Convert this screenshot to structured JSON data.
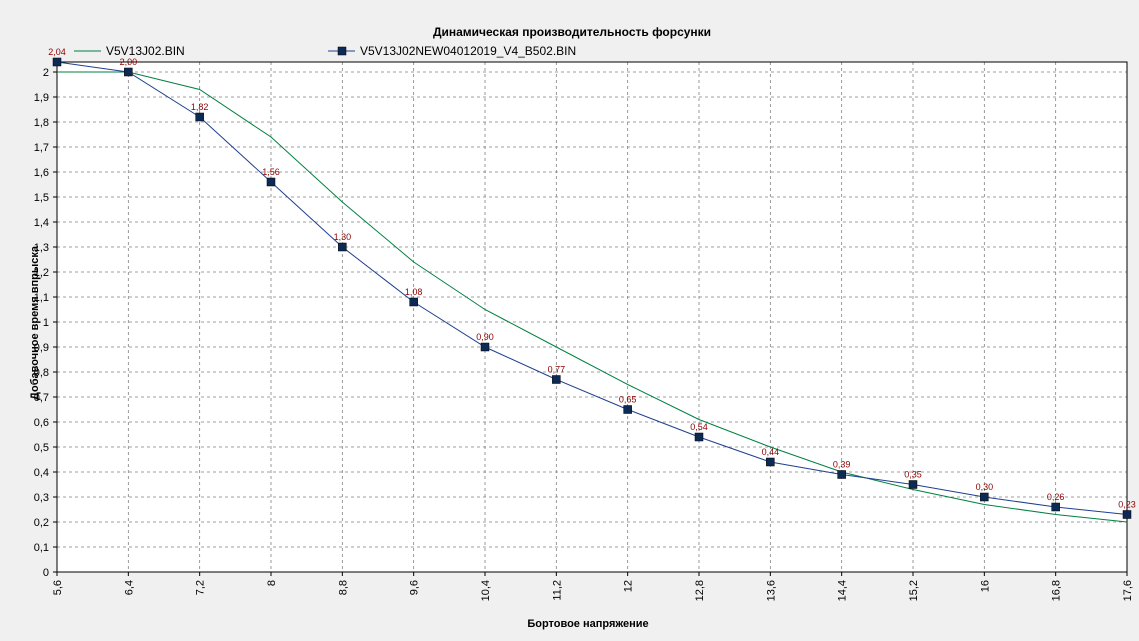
{
  "chart_data": {
    "type": "line",
    "title": "Динамическая производительность форсунки",
    "xlabel": "Бортовое напряжение",
    "ylabel": "Добавочное время впрыска",
    "x": [
      5.6,
      6.4,
      7.2,
      8.0,
      8.8,
      9.6,
      10.4,
      11.2,
      12.0,
      12.8,
      13.6,
      14.4,
      15.2,
      16.0,
      16.8,
      17.6
    ],
    "x_tick_labels": [
      "5,6",
      "6,4",
      "7,2",
      "8",
      "8,8",
      "9,6",
      "10,4",
      "11,2",
      "12",
      "12,8",
      "13,6",
      "14,4",
      "15,2",
      "16",
      "16,8",
      "17,6"
    ],
    "y_tick_labels": [
      "0",
      "0,1",
      "0,2",
      "0,3",
      "0,4",
      "0,5",
      "0,6",
      "0,7",
      "0,8",
      "0,9",
      "1",
      "1,1",
      "1,2",
      "1,3",
      "1,4",
      "1,5",
      "1,6",
      "1,7",
      "1,8",
      "1,9",
      "2"
    ],
    "xlim": [
      5.6,
      17.6
    ],
    "ylim": [
      0,
      2.04
    ],
    "grid": true,
    "legend_position": "top",
    "series": [
      {
        "name": "V5V13J02.BIN",
        "color": "#008040",
        "marker": "none",
        "values": [
          2.0,
          2.0,
          1.93,
          1.74,
          1.48,
          1.24,
          1.05,
          0.9,
          0.75,
          0.61,
          0.5,
          0.4,
          0.33,
          0.27,
          0.23,
          0.2
        ]
      },
      {
        "name": "V5V13J02NEW04012019_V4_B502.BIN",
        "color": "#1f3f8f",
        "marker": "square",
        "values": [
          2.04,
          2.0,
          1.82,
          1.56,
          1.3,
          1.08,
          0.9,
          0.77,
          0.65,
          0.54,
          0.44,
          0.39,
          0.35,
          0.3,
          0.26,
          0.23
        ],
        "data_labels": [
          "2,04",
          "2,00",
          "1,82",
          "1,56",
          "1,30",
          "1,08",
          "0,90",
          "0,77",
          "0,65",
          "0,54",
          "0,44",
          "0,39",
          "0,35",
          "0,30",
          "0,26",
          "0,23"
        ]
      }
    ]
  }
}
